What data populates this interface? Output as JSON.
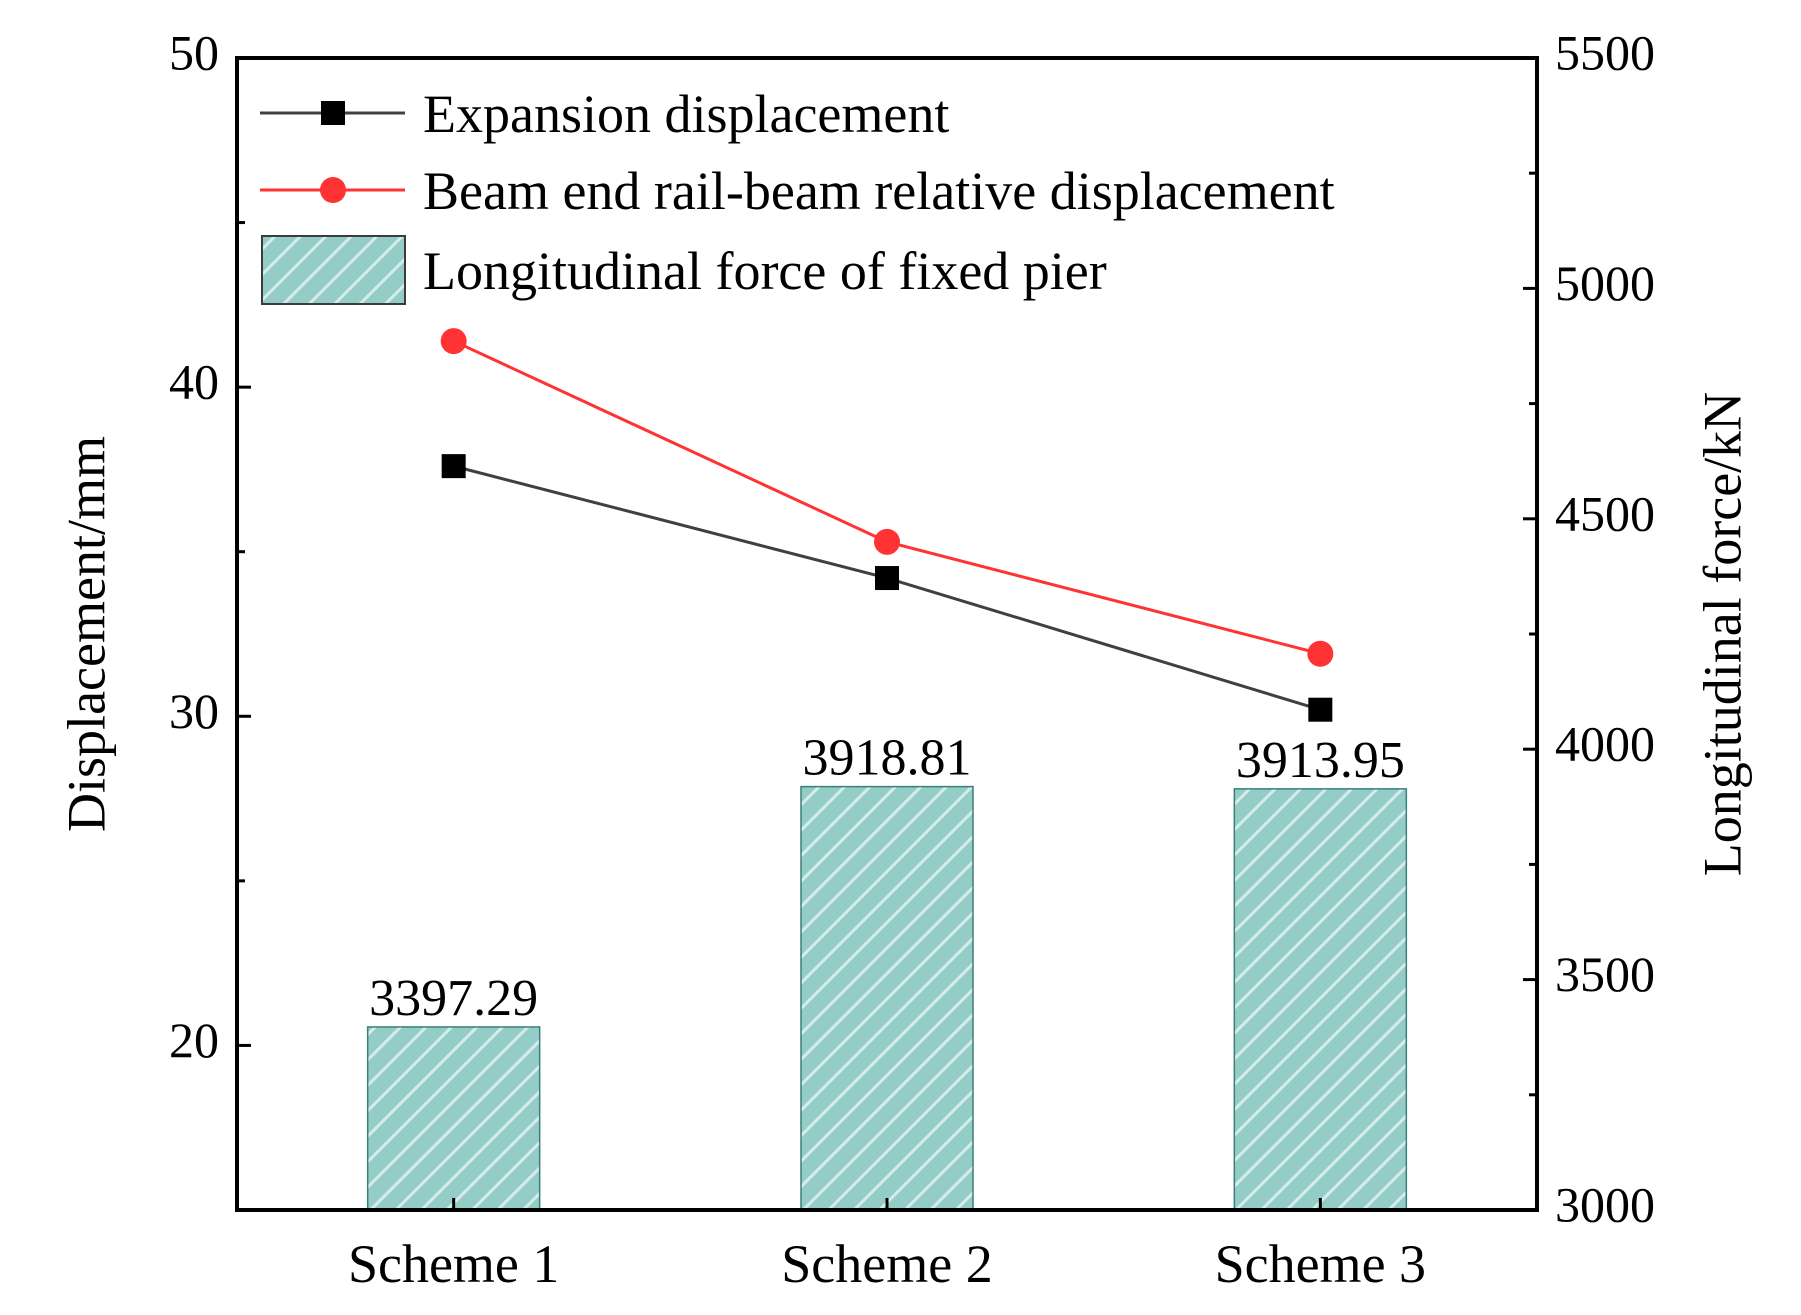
{
  "chart_data": {
    "type": "bar+line",
    "categories": [
      "Scheme 1",
      "Scheme 2",
      "Scheme 3"
    ],
    "left_axis": {
      "label": "Displacement/mm",
      "ylim": [
        15,
        50
      ],
      "ticks": [
        20,
        30,
        40,
        50
      ],
      "tick_labels": [
        "20",
        "30",
        "40",
        "50"
      ]
    },
    "right_axis": {
      "label": "Longitudinal force/kN",
      "ylim": [
        3000,
        5500
      ],
      "ticks": [
        3000,
        3500,
        4000,
        4500,
        5000,
        5500
      ],
      "tick_labels": [
        "3000",
        "3500",
        "4000",
        "4500",
        "5000",
        "5500"
      ]
    },
    "series": [
      {
        "name": "Expansion displacement",
        "type": "line",
        "axis": "left",
        "marker": "square",
        "color": "#000000",
        "line_color": "#404040",
        "values": [
          37.6,
          34.2,
          30.2
        ]
      },
      {
        "name": "Beam end rail-beam relative displacement",
        "type": "line",
        "axis": "left",
        "marker": "circle",
        "color": "#ff3333",
        "line_color": "#ff3333",
        "values": [
          41.4,
          35.3,
          31.9
        ]
      },
      {
        "name": "Longitudinal force of fixed pier",
        "type": "bar",
        "axis": "right",
        "color": "#94cdc8",
        "hatch": "diagonal",
        "values": [
          3397.29,
          3918.81,
          3913.95
        ],
        "data_labels": [
          "3397.29",
          "3918.81",
          "3913.95"
        ]
      }
    ],
    "legend_position": "top-left",
    "grid": false
  }
}
